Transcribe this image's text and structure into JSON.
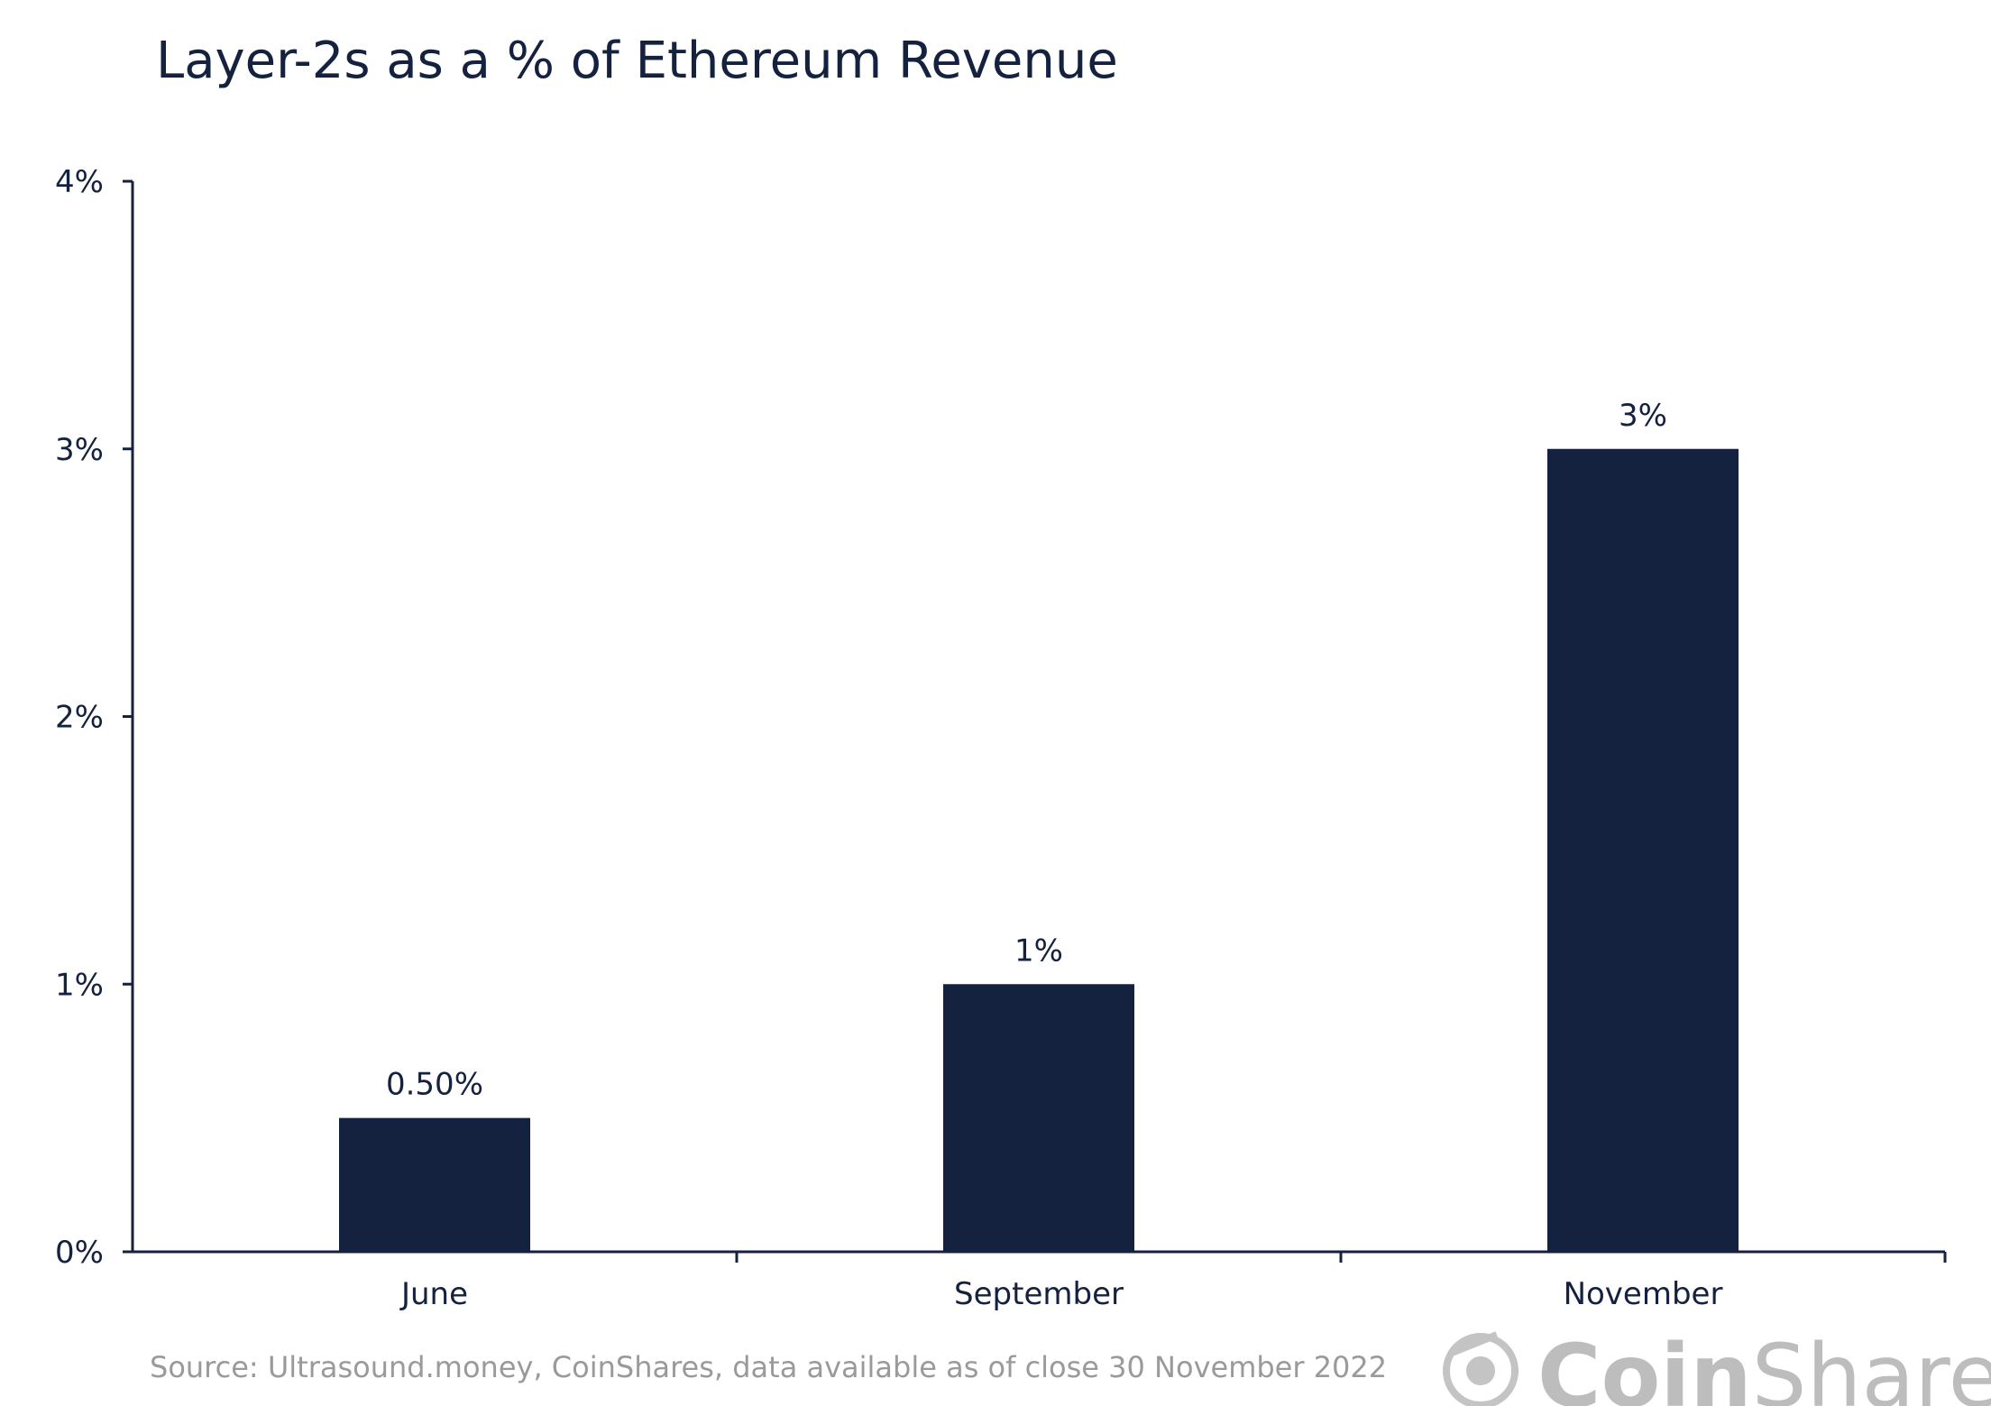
{
  "chart_data": {
    "type": "bar",
    "title": "Layer-2s as a % of Ethereum Revenue",
    "xlabel": "",
    "ylabel": "",
    "categories": [
      "June",
      "September",
      "November"
    ],
    "values": [
      0.5,
      1,
      3
    ],
    "data_labels": [
      "0.50%",
      "1%",
      "3%"
    ],
    "ylim": [
      0,
      4
    ],
    "y_ticks": [
      0,
      1,
      2,
      3,
      4
    ],
    "y_tick_labels": [
      "0%",
      "1%",
      "2%",
      "3%",
      "4%"
    ],
    "grid": false,
    "legend": "none",
    "bar_color": "#14223f"
  },
  "source": "Source: Ultrasound.money, CoinShares, data available as of close 30 November 2022",
  "logo": {
    "brand_bold": "Coin",
    "brand_light": "Shares",
    "color": "#bdbdbd"
  },
  "colors": {
    "text": "#14223f",
    "axis": "#14223f",
    "source": "#9a9a9a"
  }
}
